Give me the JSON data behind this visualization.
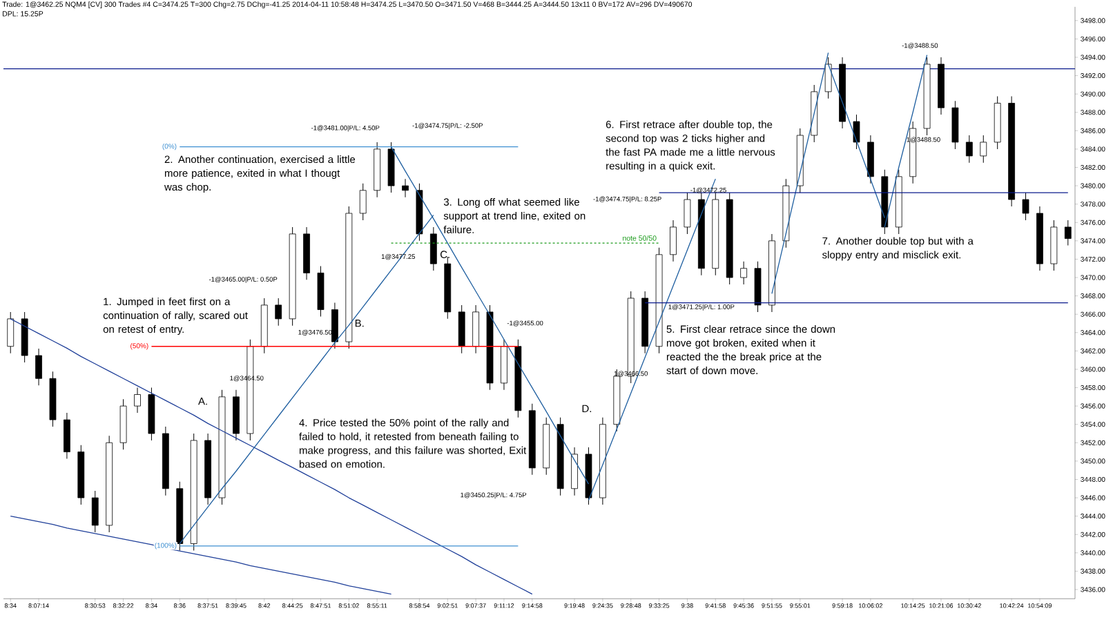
{
  "chart_data": {
    "type": "candlestick",
    "title": "Trade: 1@3462.25 NQM4 [CV] 300 Trades #4 C=3474.25 T=300 Chg=2.75 DChg=-41.25 2014-04-11 10:58:48 H=3474.25 L=3470.50 O=3471.50 V=468 B=3444.25 A=3444.50 13x11 0 BV=172 AV=296 DV=490670",
    "subtitle": "DPL: 15.25P",
    "categories": [
      "8:34",
      null,
      "8:07:14",
      null,
      null,
      null,
      "8:30:53",
      null,
      "8:32:22",
      null,
      "8:34",
      null,
      "8:36",
      null,
      "8:37:51",
      null,
      "8:39:45",
      null,
      "8:42",
      null,
      "8:44:25",
      null,
      "8:47:51",
      null,
      "8:51:02",
      null,
      "8:55:11",
      null,
      null,
      "8:58:54",
      null,
      "9:02:51",
      null,
      "9:07:37",
      null,
      "9:11:12",
      null,
      "9:14:58",
      null,
      null,
      "9:19:48",
      null,
      "9:24:35",
      null,
      "9:28:48",
      null,
      "9:33:25",
      null,
      "9:38",
      null,
      "9:41:58",
      null,
      "9:45:36",
      null,
      "9:51:55",
      null,
      "9:55:01",
      null,
      null,
      "9:59:18",
      null,
      "10:06:02",
      null,
      null,
      "10:14:25",
      null,
      "10:21:06",
      null,
      "10:30:42",
      null,
      null,
      "10:42:24",
      null,
      "10:54:09",
      null,
      null
    ],
    "ohlc": [
      [
        3462.5,
        3466.25,
        3461.75,
        3465.5
      ],
      [
        3465.5,
        3466.25,
        3460.75,
        3461.5
      ],
      [
        3461.5,
        3462.25,
        3458.25,
        3459
      ],
      [
        3459,
        3459.75,
        3453.75,
        3454.5
      ],
      [
        3454.5,
        3455.25,
        3450.25,
        3451
      ],
      [
        3451,
        3451.75,
        3445.25,
        3446
      ],
      [
        3446,
        3446.75,
        3442.25,
        3443
      ],
      [
        3443,
        3452.75,
        3442.25,
        3452
      ],
      [
        3452,
        3456.75,
        3451.25,
        3456
      ],
      [
        3456,
        3458,
        3455.25,
        3457.25
      ],
      [
        3457.25,
        3458,
        3452.25,
        3453
      ],
      [
        3453,
        3453.75,
        3446.25,
        3447
      ],
      [
        3447,
        3447.75,
        3440.25,
        3441
      ],
      [
        3441,
        3453,
        3440.25,
        3452.25
      ],
      [
        3452.25,
        3453,
        3445.25,
        3446
      ],
      [
        3446,
        3457.75,
        3445.25,
        3457
      ],
      [
        3457,
        3457.75,
        3452.25,
        3453
      ],
      [
        3453,
        3463.25,
        3452.25,
        3462.5
      ],
      [
        3462.5,
        3467.75,
        3461.75,
        3467
      ],
      [
        3467,
        3467.75,
        3464.75,
        3465.5
      ],
      [
        3465.5,
        3475.5,
        3464.75,
        3474.75
      ],
      [
        3474.75,
        3475.5,
        3469.75,
        3470.5
      ],
      [
        3470.5,
        3471.25,
        3465.75,
        3466.5
      ],
      [
        3466.5,
        3467.25,
        3462.25,
        3463
      ],
      [
        3463,
        3477.75,
        3462.25,
        3477
      ],
      [
        3477,
        3480.25,
        3476.25,
        3479.5
      ],
      [
        3479.5,
        3484.75,
        3478.75,
        3484
      ],
      [
        3484,
        3484.75,
        3479.25,
        3480
      ],
      [
        3480,
        3480.75,
        3478.75,
        3479.5
      ],
      [
        3479.5,
        3480.25,
        3474,
        3474.75
      ],
      [
        3474.75,
        3475.5,
        3470.75,
        3471.5
      ],
      [
        3471.5,
        3472.25,
        3465.5,
        3466.25
      ],
      [
        3466.25,
        3467,
        3461.75,
        3462.5
      ],
      [
        3462.5,
        3467,
        3461.75,
        3466.25
      ],
      [
        3466.25,
        3467,
        3457.75,
        3458.5
      ],
      [
        3458.5,
        3463.25,
        3457.75,
        3462.5
      ],
      [
        3462.5,
        3463.25,
        3454.75,
        3455.5
      ],
      [
        3455.5,
        3456.25,
        3448.5,
        3449.25
      ],
      [
        3449.25,
        3454.75,
        3448.5,
        3454
      ],
      [
        3454,
        3454.75,
        3446.25,
        3447
      ],
      [
        3447,
        3451.5,
        3446.25,
        3450.75
      ],
      [
        3450.75,
        3451.5,
        3445.25,
        3446
      ],
      [
        3446,
        3454.75,
        3445.25,
        3454
      ],
      [
        3454,
        3460,
        3453.25,
        3459.25
      ],
      [
        3459.25,
        3468.5,
        3458.5,
        3467.75
      ],
      [
        3467.75,
        3468.5,
        3461.75,
        3462.5
      ],
      [
        3462.5,
        3473.25,
        3461.75,
        3472.5
      ],
      [
        3472.5,
        3476.25,
        3471.75,
        3475.5
      ],
      [
        3475.5,
        3479.25,
        3474.75,
        3478.5
      ],
      [
        3478.5,
        3479.25,
        3470.25,
        3471
      ],
      [
        3471,
        3479.25,
        3470.25,
        3478.5
      ],
      [
        3478.5,
        3479.25,
        3469.25,
        3470
      ],
      [
        3470,
        3471.75,
        3469.25,
        3471
      ],
      [
        3471,
        3471.75,
        3466.25,
        3467
      ],
      [
        3467,
        3474.75,
        3466.25,
        3474
      ],
      [
        3474,
        3480.75,
        3473.25,
        3480
      ],
      [
        3480,
        3486.25,
        3479.25,
        3485.5
      ],
      [
        3485.5,
        3491,
        3484.75,
        3490.25
      ],
      [
        3490.25,
        3494,
        3489.5,
        3493.25
      ],
      [
        3493.25,
        3494,
        3486.25,
        3487
      ],
      [
        3487,
        3487.75,
        3484,
        3484.75
      ],
      [
        3484.75,
        3485.5,
        3480.25,
        3481
      ],
      [
        3481,
        3481.75,
        3474.75,
        3475.5
      ],
      [
        3475.5,
        3481.75,
        3474.75,
        3481
      ],
      [
        3481,
        3487,
        3480.25,
        3486.25
      ],
      [
        3486.25,
        3494,
        3485.5,
        3493.25
      ],
      [
        3493.25,
        3494,
        3487.75,
        3488.5
      ],
      [
        3488.5,
        3489.25,
        3484,
        3484.75
      ],
      [
        3484.75,
        3485.5,
        3482.5,
        3483.25
      ],
      [
        3483.25,
        3485.5,
        3482.5,
        3484.75
      ],
      [
        3484.75,
        3489.75,
        3484,
        3489
      ],
      [
        3489,
        3489.75,
        3477.75,
        3478.5
      ],
      [
        3478.5,
        3479.25,
        3476.25,
        3477
      ],
      [
        3477,
        3477.75,
        3470.75,
        3471.5
      ],
      [
        3471.5,
        3476.25,
        3470.75,
        3475.5
      ],
      [
        3475.5,
        3476.25,
        3473.5,
        3474.25
      ]
    ],
    "color": "#000000",
    "series": [
      {
        "type": "line",
        "color": "#1f3f99",
        "values": [
          3465.5,
          3464.7,
          3463.9,
          3463.1,
          3462.3,
          3461.4,
          3460.6,
          3459.8,
          3459.0,
          3458.2,
          3457.4,
          3456.6,
          3455.8,
          3455.0,
          3454.1,
          3453.3,
          3452.5,
          3451.7,
          3450.9,
          3450.1,
          3449.3,
          3448.5,
          3447.7,
          3446.9,
          3446.0,
          3445.2,
          3444.4,
          3443.6,
          3442.8,
          3442.0,
          3441.2,
          3440.4,
          3439.6,
          3438.7,
          3437.9,
          3437.1,
          3436.3,
          3435.5,
          null,
          null,
          null,
          null,
          null,
          null,
          null,
          null,
          null,
          null,
          null,
          null,
          null,
          null,
          null,
          null,
          null,
          null,
          null,
          null,
          null,
          null,
          null,
          null,
          null,
          null,
          null,
          null,
          null,
          null,
          null,
          null,
          null,
          null,
          null,
          null,
          null,
          null
        ]
      },
      {
        "type": "line",
        "color": "#1f3f99",
        "values": [
          3444.0,
          3443.7,
          3443.4,
          3443.1,
          3442.7,
          3442.4,
          3442.1,
          3441.8,
          3441.5,
          3441.2,
          3440.9,
          3440.5,
          3440.2,
          3439.9,
          3439.6,
          3439.3,
          3439.0,
          3438.6,
          3438.3,
          3438.0,
          3437.7,
          3437.4,
          3437.1,
          3436.8,
          3436.4,
          3436.1,
          3435.8,
          3435.5,
          null,
          null,
          null,
          null,
          null,
          null,
          null,
          null,
          null,
          null,
          null,
          null,
          null,
          null,
          null,
          null,
          null,
          null,
          null,
          null,
          null,
          null,
          null,
          null,
          null,
          null,
          null,
          null,
          null,
          null,
          null,
          null,
          null,
          null,
          null,
          null,
          null,
          null,
          null,
          null,
          null,
          null,
          null,
          null,
          null,
          null,
          null,
          null
        ]
      },
      {
        "type": "line",
        "color": "#1f5fa0",
        "values": [
          null,
          null,
          null,
          null,
          null,
          null,
          null,
          null,
          null,
          null,
          null,
          null,
          3441.0,
          3443.0,
          3445.0,
          3447.0,
          3448.9,
          3450.9,
          3452.9,
          3454.9,
          3456.9,
          3458.9,
          3460.9,
          3462.9,
          3464.8,
          3466.8,
          3468.8,
          3470.8,
          3472.8,
          3474.8,
          3476.8,
          null,
          null,
          null,
          null,
          null,
          null,
          null,
          null,
          null,
          null,
          null,
          null,
          null,
          null,
          null,
          null,
          null,
          null,
          null,
          null,
          null,
          null,
          null,
          null,
          null,
          null,
          null,
          null,
          null,
          null,
          null,
          null,
          null,
          null,
          null,
          null,
          null,
          null,
          null,
          null,
          null,
          null,
          null,
          null,
          null
        ]
      },
      {
        "type": "line",
        "color": "#1f5fa0",
        "values": [
          null,
          null,
          null,
          null,
          null,
          null,
          null,
          null,
          null,
          null,
          null,
          null,
          null,
          null,
          null,
          null,
          null,
          null,
          null,
          null,
          null,
          null,
          null,
          null,
          null,
          null,
          null,
          3484.25,
          3481.6,
          3479.0,
          3476.4,
          3473.75,
          3471.1,
          3468.5,
          3465.9,
          3463.25,
          3460.6,
          3458.0,
          3455.4,
          3452.75,
          3450.1,
          3447.5,
          null,
          null,
          null,
          null,
          null,
          null,
          null,
          null,
          null,
          null,
          null,
          null,
          null,
          null,
          null,
          null,
          null,
          null,
          null,
          null,
          null,
          null,
          null,
          null,
          null,
          null,
          null,
          null,
          null,
          null,
          null,
          null,
          null,
          null
        ]
      },
      {
        "type": "line",
        "color": "#1f5fa0",
        "values": [
          null,
          null,
          null,
          null,
          null,
          null,
          null,
          null,
          null,
          null,
          null,
          null,
          null,
          null,
          null,
          null,
          null,
          null,
          null,
          null,
          null,
          null,
          null,
          null,
          null,
          null,
          null,
          null,
          null,
          null,
          null,
          null,
          null,
          null,
          null,
          null,
          null,
          null,
          null,
          null,
          null,
          3445.75,
          3449.6,
          3453.5,
          3457.4,
          3461.3,
          3465.2,
          3469.1,
          3473.0,
          3476.9,
          3480.75,
          null,
          null,
          null,
          null,
          null,
          null,
          null,
          null,
          null,
          null,
          null,
          null,
          null,
          null,
          null,
          null,
          null,
          null,
          null,
          null,
          null,
          null,
          null,
          null,
          null
        ]
      },
      {
        "type": "line",
        "color": "#1f5fa0",
        "values": [
          null,
          null,
          null,
          null,
          null,
          null,
          null,
          null,
          null,
          null,
          null,
          null,
          null,
          null,
          null,
          null,
          null,
          null,
          null,
          null,
          null,
          null,
          null,
          null,
          null,
          null,
          null,
          null,
          null,
          null,
          null,
          null,
          null,
          null,
          null,
          null,
          null,
          null,
          null,
          null,
          null,
          null,
          null,
          null,
          null,
          null,
          null,
          null,
          null,
          null,
          null,
          null,
          null,
          null,
          3468.25,
          3474.8,
          3481.4,
          3487.9,
          3494.5,
          null,
          null,
          null,
          null,
          null,
          null,
          null,
          null,
          null,
          null,
          null,
          null,
          null,
          null,
          null,
          null,
          null
        ]
      },
      {
        "type": "line",
        "color": "#1f5fa0",
        "values": [
          null,
          null,
          null,
          null,
          null,
          null,
          null,
          null,
          null,
          null,
          null,
          null,
          null,
          null,
          null,
          null,
          null,
          null,
          null,
          null,
          null,
          null,
          null,
          null,
          null,
          null,
          null,
          null,
          null,
          null,
          null,
          null,
          null,
          null,
          null,
          null,
          null,
          null,
          null,
          null,
          null,
          null,
          null,
          null,
          null,
          null,
          null,
          null,
          null,
          null,
          null,
          null,
          null,
          null,
          null,
          null,
          null,
          null,
          3493.25,
          3489.1,
          3484.9,
          3480.7,
          3476.5,
          null,
          null,
          null,
          null,
          null,
          null,
          null,
          null,
          null,
          null,
          null,
          null,
          null
        ]
      },
      {
        "type": "line",
        "color": "#1f5fa0",
        "values": [
          null,
          null,
          null,
          null,
          null,
          null,
          null,
          null,
          null,
          null,
          null,
          null,
          null,
          null,
          null,
          null,
          null,
          null,
          null,
          null,
          null,
          null,
          null,
          null,
          null,
          null,
          null,
          null,
          null,
          null,
          null,
          null,
          null,
          null,
          null,
          null,
          null,
          null,
          null,
          null,
          null,
          null,
          null,
          null,
          null,
          null,
          null,
          null,
          null,
          null,
          null,
          null,
          null,
          null,
          null,
          null,
          null,
          null,
          null,
          null,
          null,
          null,
          3475.5,
          3482.0,
          3488,
          3494.25,
          null,
          null,
          null,
          null,
          null,
          null,
          null,
          null,
          null,
          null
        ]
      },
      {
        "type": "line",
        "color": "#0a1a8c",
        "values": [
          null,
          null,
          null,
          null,
          null,
          null,
          null,
          null,
          null,
          null,
          null,
          null,
          null,
          null,
          null,
          null,
          null,
          null,
          null,
          null,
          null,
          null,
          null,
          null,
          null,
          null,
          null,
          null,
          null,
          null,
          null,
          null,
          null,
          null,
          null,
          null,
          null,
          null,
          null,
          null,
          null,
          null,
          null,
          null,
          null,
          null,
          3479.25,
          3479.25,
          3479.25,
          3479.25,
          3479.25,
          3479.25,
          3479.25,
          3479.25,
          3479.25,
          3479.25,
          3479.25,
          3479.25,
          3479.25,
          3479.25,
          3479.25,
          3479.25,
          3479.25,
          3479.25,
          3479.25,
          3479.25,
          3479.25,
          3479.25,
          3479.25,
          3479.25,
          3479.25,
          3479.25,
          3479.25,
          3479.25,
          3479.25,
          3479.25
        ]
      },
      {
        "type": "line",
        "color": "#0a1a8c",
        "values": [
          null,
          null,
          null,
          null,
          null,
          null,
          null,
          null,
          null,
          null,
          null,
          null,
          null,
          null,
          null,
          null,
          null,
          null,
          null,
          null,
          null,
          null,
          null,
          null,
          null,
          null,
          null,
          null,
          null,
          null,
          null,
          null,
          null,
          null,
          null,
          null,
          null,
          null,
          null,
          null,
          null,
          null,
          null,
          null,
          null,
          3467.25,
          3467.25,
          3467.25,
          3467.25,
          3467.25,
          3467.25,
          3467.25,
          3467.25,
          3467.25,
          3467.25,
          3467.25,
          3467.25,
          3467.25,
          3467.25,
          3467.25,
          3467.25,
          3467.25,
          3467.25,
          3467.25,
          3467.25,
          3467.25,
          3467.25,
          3467.25,
          3467.25,
          3467.25,
          3467.25,
          3467.25,
          3467.25,
          3467.25,
          3467.25,
          3467.25
        ]
      },
      {
        "type": "line",
        "name": "(0%)",
        "color": "#3d8fd1",
        "values": [
          null,
          null,
          null,
          null,
          null,
          null,
          null,
          null,
          null,
          null,
          null,
          null,
          3484.25,
          3484.25,
          3484.25,
          3484.25,
          3484.25,
          3484.25,
          3484.25,
          3484.25,
          3484.25,
          3484.25,
          3484.25,
          3484.25,
          3484.25,
          3484.25,
          3484.25,
          3484.25,
          3484.25,
          3484.25,
          3484.25,
          3484.25,
          3484.25,
          3484.25,
          3484.25,
          3484.25,
          3484.25,
          null,
          null,
          null,
          null,
          null,
          null,
          null,
          null,
          null,
          null,
          null,
          null,
          null,
          null,
          null,
          null,
          null,
          null,
          null,
          null,
          null,
          null,
          null,
          null,
          null,
          null,
          null,
          null,
          null,
          null,
          null,
          null,
          null,
          null,
          null,
          null,
          null,
          null,
          null
        ]
      },
      {
        "type": "line",
        "name": "(50%)",
        "color": "#ff0000",
        "values": [
          null,
          null,
          null,
          null,
          null,
          null,
          null,
          null,
          null,
          null,
          3462.5,
          3462.5,
          3462.5,
          3462.5,
          3462.5,
          3462.5,
          3462.5,
          3462.5,
          3462.5,
          3462.5,
          3462.5,
          3462.5,
          3462.5,
          3462.5,
          3462.5,
          3462.5,
          3462.5,
          3462.5,
          3462.5,
          3462.5,
          3462.5,
          3462.5,
          3462.5,
          3462.5,
          3462.5,
          3462.5,
          3462.5,
          null,
          null,
          null,
          null,
          null,
          null,
          null,
          null,
          null,
          null,
          null,
          null,
          null,
          null,
          null,
          null,
          null,
          null,
          null,
          null,
          null,
          null,
          null,
          null,
          null,
          null,
          null,
          null,
          null,
          null,
          null,
          null,
          null,
          null,
          null,
          null,
          null,
          null,
          null
        ]
      },
      {
        "type": "line",
        "name": "(100%)",
        "color": "#3d8fd1",
        "values": [
          null,
          null,
          null,
          null,
          null,
          null,
          null,
          null,
          null,
          null,
          null,
          null,
          3440.75,
          3440.75,
          3440.75,
          3440.75,
          3440.75,
          3440.75,
          3440.75,
          3440.75,
          3440.75,
          3440.75,
          3440.75,
          3440.75,
          3440.75,
          3440.75,
          3440.75,
          3440.75,
          3440.75,
          3440.75,
          3440.75,
          3440.75,
          3440.75,
          3440.75,
          3440.75,
          3440.75,
          3440.75,
          null,
          null,
          null,
          null,
          null,
          null,
          null,
          null,
          null,
          null,
          null,
          null,
          null,
          null,
          null,
          null,
          null,
          null,
          null,
          null,
          null,
          null,
          null,
          null,
          null,
          null,
          null,
          null,
          null,
          null,
          null,
          null,
          null,
          null,
          null,
          null,
          null,
          null,
          null
        ]
      },
      {
        "type": "line",
        "name": "note 50/50",
        "color": "#1a9a1a",
        "line_style": "dashed",
        "values": [
          null,
          null,
          null,
          null,
          null,
          null,
          null,
          null,
          null,
          null,
          null,
          null,
          null,
          null,
          null,
          null,
          null,
          null,
          null,
          null,
          null,
          null,
          null,
          null,
          null,
          null,
          null,
          3473.75,
          3473.75,
          3473.75,
          3473.75,
          3473.75,
          3473.75,
          3473.75,
          3473.75,
          3473.75,
          3473.75,
          3473.75,
          3473.75,
          3473.75,
          3473.75,
          3473.75,
          3473.75,
          3473.75,
          3473.75,
          3473.75,
          3473.75,
          null,
          null,
          null,
          null,
          null,
          null,
          null,
          null,
          null,
          null,
          null,
          null,
          null,
          null,
          null,
          null,
          null,
          null,
          null,
          null,
          null,
          null,
          null,
          null,
          null,
          null,
          null,
          null,
          null
        ]
      }
    ],
    "ref_lines": [
      {
        "axis": "y",
        "value": 3492.75,
        "color": "#0a1a8c"
      }
    ],
    "ylim": [
      3435,
      3499.5
    ],
    "yticks": [
      {
        "value": 3436,
        "label": "3436.00"
      },
      {
        "value": 3438,
        "label": "3438.00"
      },
      {
        "value": 3440,
        "label": "3440.00"
      },
      {
        "value": 3442,
        "label": "3442.00"
      },
      {
        "value": 3444,
        "label": "3444.00"
      },
      {
        "value": 3446,
        "label": "3446.00"
      },
      {
        "value": 3448,
        "label": "3448.00"
      },
      {
        "value": 3450,
        "label": "3450.00"
      },
      {
        "value": 3452,
        "label": "3452.00"
      },
      {
        "value": 3454,
        "label": "3454.00"
      },
      {
        "value": 3456,
        "label": "3456.00"
      },
      {
        "value": 3458,
        "label": "3458.00"
      },
      {
        "value": 3460,
        "label": "3460.00"
      },
      {
        "value": 3462,
        "label": "3462.00"
      },
      {
        "value": 3464,
        "label": "3464.00"
      },
      {
        "value": 3466,
        "label": "3466.00"
      },
      {
        "value": 3468,
        "label": "3468.00"
      },
      {
        "value": 3470,
        "label": "3470.00"
      },
      {
        "value": 3472,
        "label": "3472.00"
      },
      {
        "value": 3474,
        "label": "3474.00"
      },
      {
        "value": 3476,
        "label": "3476.00"
      },
      {
        "value": 3478,
        "label": "3478.00"
      },
      {
        "value": 3480,
        "label": "3480.00"
      },
      {
        "value": 3482,
        "label": "3482.00"
      },
      {
        "value": 3484,
        "label": "3484.00"
      },
      {
        "value": 3486,
        "label": "3486.00"
      },
      {
        "value": 3488,
        "label": "3488.00"
      },
      {
        "value": 3490,
        "label": "3490.00"
      },
      {
        "value": 3492,
        "label": "3492.00"
      },
      {
        "value": 3494,
        "label": "3494.00"
      },
      {
        "value": 3496,
        "label": "3496.00"
      },
      {
        "value": 3498,
        "label": "3498.00"
      }
    ],
    "annotations": [
      "1.  Jumped in feet first on a continuation of rally,  scared out on  retest of entry.",
      "2.  Another continuation, exercised a little more patience, exited in what I thougt was chop.",
      "3.  Long off what seemed like support at trend line, exited on failure.",
      "4.  Price tested the 50% point of the rally and failed to hold, it retested from beneath failing to make progress, and this failure was shorted, Exit based on emotion.",
      "5.  First clear retrace since the down move got broken, exited when it reacted the the break price at the start of down move.",
      "6.  First retrace after double top, the second top was 2 ticks higher and the fast PA made me a little nervous resulting in a quick exit.",
      "7.  Another double top but with a sloppy entry and misclick exit.",
      "A.",
      "B.",
      "C.",
      "D.",
      "-1@3481.00|P/L: 4.50P",
      "-1@3474.75|P/L: -2.50P",
      "1@3477.25",
      "-1@3465.00|P/L: 0.50P",
      "1@3476.50",
      "1@3464.50",
      "-1@3455.00",
      "1@3450.25|P/L: 4.75P",
      "-1@3474.75|P/L: 8.25P",
      "-1@3472.25",
      "1@3471.25|P/L: 1.00P",
      "1@3466.50",
      "-1@3488.50",
      "1@3488.50"
    ]
  }
}
